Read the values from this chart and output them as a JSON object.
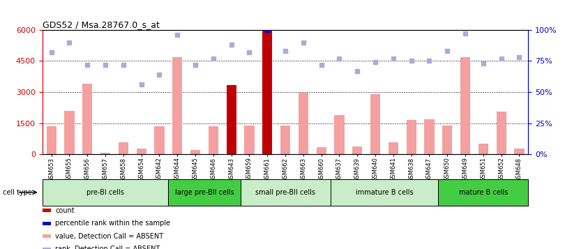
{
  "title": "GDS52 / Msa.28767.0_s_at",
  "samples": [
    "GSM653",
    "GSM655",
    "GSM656",
    "GSM657",
    "GSM658",
    "GSM654",
    "GSM642",
    "GSM644",
    "GSM645",
    "GSM646",
    "GSM643",
    "GSM659",
    "GSM661",
    "GSM662",
    "GSM663",
    "GSM660",
    "GSM637",
    "GSM639",
    "GSM640",
    "GSM641",
    "GSM638",
    "GSM647",
    "GSM650",
    "GSM649",
    "GSM651",
    "GSM652",
    "GSM648"
  ],
  "bar_values": [
    1350,
    2100,
    3400,
    80,
    580,
    280,
    1350,
    4700,
    200,
    1350,
    3350,
    1400,
    5980,
    1380,
    2980,
    350,
    1900,
    380,
    2900,
    580,
    1650,
    1700,
    1400,
    4700,
    500,
    2050,
    280
  ],
  "bar_colors": [
    "#f4a0a0",
    "#f4a0a0",
    "#f4a0a0",
    "#f4a0a0",
    "#f4a0a0",
    "#f4a0a0",
    "#f4a0a0",
    "#f4a0a0",
    "#f4a0a0",
    "#f4a0a0",
    "#c00000",
    "#f4a0a0",
    "#c00000",
    "#f4a0a0",
    "#f4a0a0",
    "#f4a0a0",
    "#f4a0a0",
    "#f4a0a0",
    "#f4a0a0",
    "#f4a0a0",
    "#f4a0a0",
    "#f4a0a0",
    "#f4a0a0",
    "#f4a0a0",
    "#f4a0a0",
    "#f4a0a0",
    "#f4a0a0"
  ],
  "rank_values": [
    82,
    90,
    72,
    72,
    72,
    56,
    64,
    96,
    72,
    77,
    88,
    82,
    100,
    83,
    90,
    72,
    77,
    67,
    74,
    77,
    75,
    75,
    83,
    97,
    73,
    77,
    78
  ],
  "rank_colors": [
    "#aaaadd",
    "#aaaadd",
    "#aaaadd",
    "#aaaadd",
    "#aaaadd",
    "#aaaadd",
    "#aaaadd",
    "#aaaadd",
    "#aaaadd",
    "#aaaadd",
    "#aaaadd",
    "#aaaadd",
    "#0000cc",
    "#aaaadd",
    "#aaaadd",
    "#aaaadd",
    "#aaaadd",
    "#aaaadd",
    "#aaaadd",
    "#aaaadd",
    "#aaaadd",
    "#aaaadd",
    "#aaaadd",
    "#aaaadd",
    "#aaaadd",
    "#aaaadd",
    "#aaaadd"
  ],
  "ylim_left": [
    0,
    6000
  ],
  "ylim_right": [
    0,
    100
  ],
  "yticks_left": [
    0,
    1500,
    3000,
    4500,
    6000
  ],
  "yticks_right": [
    0,
    25,
    50,
    75,
    100
  ],
  "ytick_labels_right": [
    "0%",
    "25%",
    "50%",
    "75%",
    "100%"
  ],
  "cell_groups": [
    {
      "label": "pre-BI cells",
      "start": 0,
      "end": 6,
      "color": "#c8edc8"
    },
    {
      "label": "large pre-BII cells",
      "start": 7,
      "end": 10,
      "color": "#44cc44"
    },
    {
      "label": "small pre-BII cells",
      "start": 11,
      "end": 15,
      "color": "#c8edc8"
    },
    {
      "label": "immature B cells",
      "start": 16,
      "end": 21,
      "color": "#c8edc8"
    },
    {
      "label": "mature B cells",
      "start": 22,
      "end": 26,
      "color": "#44cc44"
    }
  ],
  "legend_items": [
    {
      "label": "count",
      "color": "#cc0000"
    },
    {
      "label": "percentile rank within the sample",
      "color": "#0000cc"
    },
    {
      "label": "value, Detection Call = ABSENT",
      "color": "#f4a0a0"
    },
    {
      "label": "rank, Detection Call = ABSENT",
      "color": "#aaaadd"
    }
  ],
  "cell_type_label": "cell type",
  "background_color": "#ffffff",
  "plot_bg_color": "#ffffff",
  "tick_color_left": "#cc0000",
  "tick_color_right": "#0000cc",
  "grid_ticks": [
    1500,
    3000,
    4500
  ],
  "bar_width": 0.55
}
